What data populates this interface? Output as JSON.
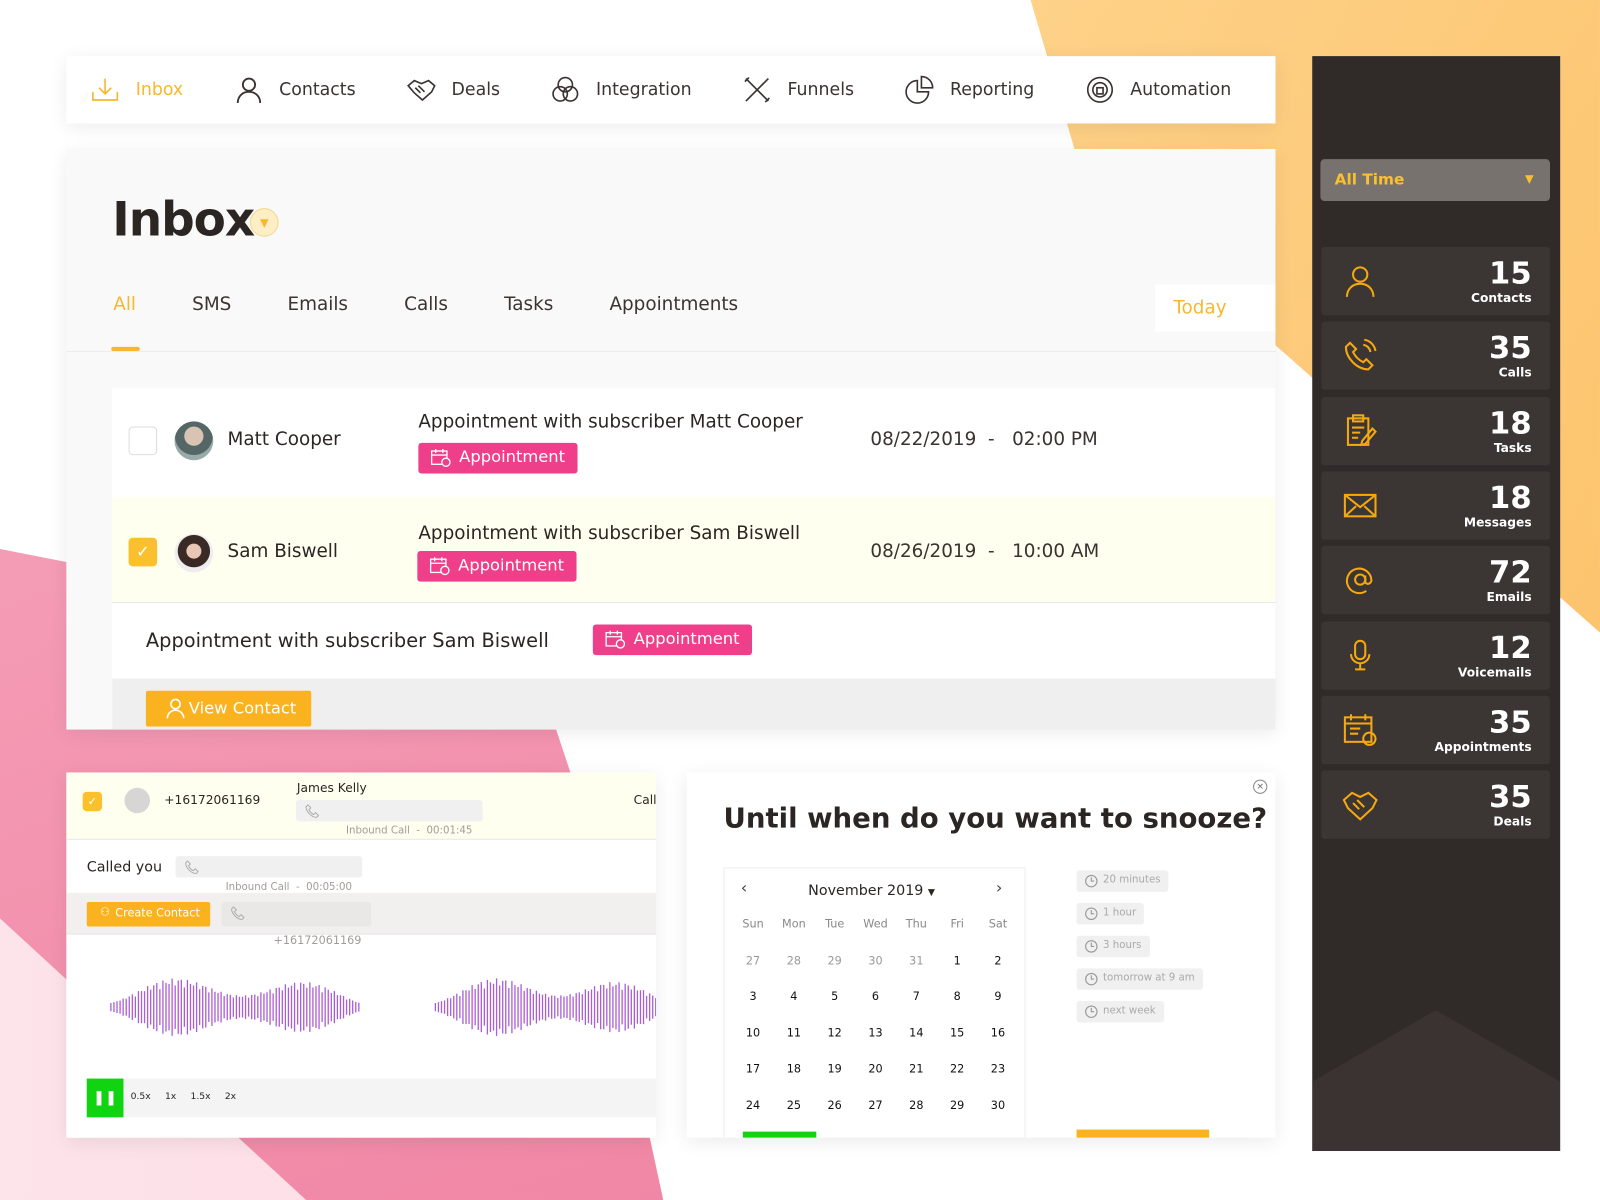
{
  "colors": {
    "accent": "#f5b82e",
    "badge": "#ef3f8a",
    "sidebar": "#302a29",
    "play": "#11d411"
  },
  "nav": [
    {
      "label": "Inbox",
      "icon": "inbox-download-icon",
      "active": true
    },
    {
      "label": "Contacts",
      "icon": "user-icon"
    },
    {
      "label": "Deals",
      "icon": "handshake-icon"
    },
    {
      "label": "Integration",
      "icon": "circles-icon"
    },
    {
      "label": "Funnels",
      "icon": "tools-icon"
    },
    {
      "label": "Reporting",
      "icon": "pie-chart-icon"
    },
    {
      "label": "Automation",
      "icon": "automation-icon"
    }
  ],
  "inbox": {
    "title": "Inbox",
    "tabs": [
      "All",
      "SMS",
      "Emails",
      "Calls",
      "Tasks",
      "Appointments"
    ],
    "active_tab": "All",
    "filter": "Today",
    "rows": [
      {
        "name": "Matt Cooper",
        "subject": "Appointment with subscriber Matt Cooper",
        "badge": "Appointment",
        "date": "08/22/2019  -   02:00 PM",
        "checked": false
      },
      {
        "name": "Sam Biswell",
        "subject": "Appointment with subscriber Sam Biswell",
        "badge": "Appointment",
        "date": "08/26/2019  -   10:00 AM",
        "checked": true
      }
    ],
    "detail": {
      "subject": "Appointment with subscriber Sam Biswell",
      "badge": "Appointment",
      "view_contact": "View Contact"
    }
  },
  "call": {
    "phone": "+16172061169",
    "caller": "James Kelly",
    "header_pill": "Inbound Call  -  00:01:45",
    "right_cut": "Call",
    "called_you": "Called you",
    "called_pill": "Inbound Call  -  00:05:00",
    "create_contact": "Create Contact",
    "phone_pill": "+16172061169",
    "speeds": [
      "0.5x",
      "1x",
      "1.5x",
      "2x"
    ]
  },
  "snooze": {
    "title": "Until when do you want to snooze?",
    "month": "November 2019",
    "weekdays": [
      "Sun",
      "Mon",
      "Tue",
      "Wed",
      "Thu",
      "Fri",
      "Sat"
    ],
    "days": [
      [
        "27",
        "28",
        "29",
        "30",
        "31",
        "1",
        "2"
      ],
      [
        "3",
        "4",
        "5",
        "6",
        "7",
        "8",
        "9"
      ],
      [
        "10",
        "11",
        "12",
        "13",
        "14",
        "15",
        "16"
      ],
      [
        "17",
        "18",
        "19",
        "20",
        "21",
        "22",
        "23"
      ],
      [
        "24",
        "25",
        "26",
        "27",
        "28",
        "29",
        "30"
      ]
    ],
    "options": [
      "20 minutes",
      "1 hour",
      "3 hours",
      "tomorrow at 9 am",
      "next week"
    ]
  },
  "sidebar": {
    "range": "All Time",
    "stats": [
      {
        "value": "15",
        "label": "Contacts",
        "icon": "user-icon"
      },
      {
        "value": "35",
        "label": "Calls",
        "icon": "phone-icon"
      },
      {
        "value": "18",
        "label": "Tasks",
        "icon": "clipboard-icon"
      },
      {
        "value": "18",
        "label": "Messages",
        "icon": "envelope-icon"
      },
      {
        "value": "72",
        "label": "Emails",
        "icon": "at-icon"
      },
      {
        "value": "12",
        "label": "Voicemails",
        "icon": "microphone-icon"
      },
      {
        "value": "35",
        "label": "Appointments",
        "icon": "calendar-icon"
      },
      {
        "value": "35",
        "label": "Deals",
        "icon": "handshake-icon"
      }
    ]
  }
}
